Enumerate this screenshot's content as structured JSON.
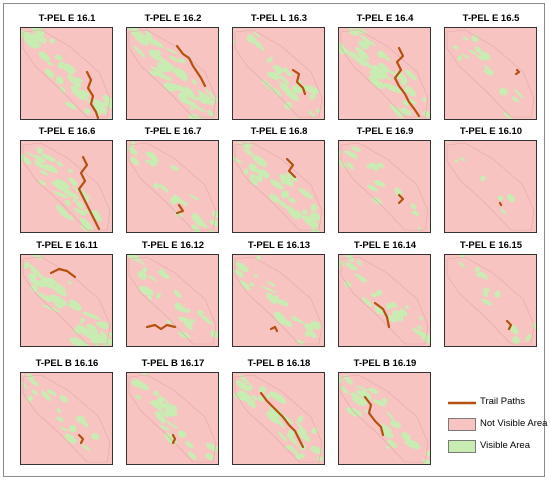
{
  "figure": {
    "colors": {
      "trail": "#b5510f",
      "not_visible": "#f7c4c2",
      "visible": "#c8ecb2",
      "panel_border": "#333333"
    },
    "panels": [
      {
        "title": "T-PEL E 16.1",
        "visible_fraction": 0.55
      },
      {
        "title": "T-PEL E 16.2",
        "visible_fraction": 0.65
      },
      {
        "title": "T-PEL L 16.3",
        "visible_fraction": 0.45
      },
      {
        "title": "T-PEL E 16.4",
        "visible_fraction": 0.6
      },
      {
        "title": "T-PEL E 16.5",
        "visible_fraction": 0.15
      },
      {
        "title": "T-PEL E 16.6",
        "visible_fraction": 0.45
      },
      {
        "title": "T-PEL E 16.7",
        "visible_fraction": 0.3
      },
      {
        "title": "T-PEL E 16.8",
        "visible_fraction": 0.45
      },
      {
        "title": "T-PEL E 16.9",
        "visible_fraction": 0.2
      },
      {
        "title": "T-PEL E 16.10",
        "visible_fraction": 0.03
      },
      {
        "title": "T-PEL E 16.11",
        "visible_fraction": 0.55
      },
      {
        "title": "T-PEL E 16.12",
        "visible_fraction": 0.3
      },
      {
        "title": "T-PEL E 16.13",
        "visible_fraction": 0.35
      },
      {
        "title": "T-PEL E 16.14",
        "visible_fraction": 0.35
      },
      {
        "title": "T-PEL E 16.15",
        "visible_fraction": 0.12
      },
      {
        "title": "T-PEL B 16.16",
        "visible_fraction": 0.2
      },
      {
        "title": "T-PEL B 16.17",
        "visible_fraction": 0.35
      },
      {
        "title": "T-PEL B 16.18",
        "visible_fraction": 0.5
      },
      {
        "title": "T-PEL B 16.19",
        "visible_fraction": 0.35
      }
    ],
    "legend": {
      "trail_label": "Trail Paths",
      "not_visible_label": "Not Visible Area",
      "visible_label": "Visible Area"
    }
  }
}
